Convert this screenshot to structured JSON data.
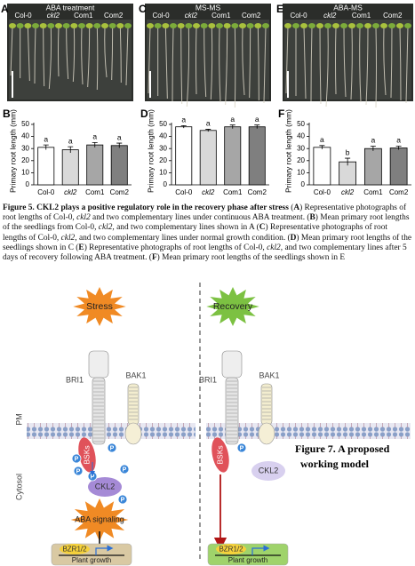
{
  "figure5": {
    "photos": [
      {
        "letter": "A",
        "title": "ABA treatment",
        "columns": [
          "Col-0",
          "ckl2",
          "Com1",
          "Com2"
        ]
      },
      {
        "letter": "C",
        "title": "MS-MS",
        "columns": [
          "Col-0",
          "ckl2",
          "Com1",
          "Com2"
        ]
      },
      {
        "letter": "E",
        "title": "ABA-MS",
        "columns": [
          "Col-0",
          "ckl2",
          "Com1",
          "Com2"
        ]
      }
    ],
    "column_italic": [
      false,
      true,
      false,
      false
    ],
    "caption": [
      {
        "text": "Figure 5. CKL2 plays a positive regulatory role in the recovery phase after stress",
        "bold": true
      },
      {
        "text": " ("
      },
      {
        "text": "A",
        "bold": true
      },
      {
        "text": ") Representative photographs of root lengths of Col-0, "
      },
      {
        "text": "ckl2",
        "italic": true
      },
      {
        "text": " and two complementary lines under continuous ABA treatment. ("
      },
      {
        "text": "B",
        "bold": true
      },
      {
        "text": ") Mean primary root lengths of the seedlings from Col-0, "
      },
      {
        "text": "ckl2",
        "italic": true
      },
      {
        "text": ", and two complementary lines shown in A ("
      },
      {
        "text": "C",
        "bold": true
      },
      {
        "text": ") Representative photographs of root lengths of Col-0, "
      },
      {
        "text": "ckl2",
        "italic": true
      },
      {
        "text": ", and two complementary lines under normal growth condition. ("
      },
      {
        "text": "D",
        "bold": true
      },
      {
        "text": ") Mean primary root lengths of the seedlings shown in C ("
      },
      {
        "text": "E",
        "bold": true
      },
      {
        "text": ") Representative photographs of root lengths of Col-0, "
      },
      {
        "text": "ckl2",
        "italic": true
      },
      {
        "text": ", and two complementary lines after 5 days of recovery following ABA treatment. ("
      },
      {
        "text": "F",
        "bold": true
      },
      {
        "text": ") Mean primary root lengths of the seedlings shown in E"
      }
    ]
  },
  "chart_data": [
    {
      "type": "bar",
      "letter": "B",
      "y_label": "Primary root length (mm)",
      "categories": [
        "Col-0",
        "ckl2",
        "Com1",
        "Com2"
      ],
      "category_italic": [
        false,
        true,
        false,
        false
      ],
      "values": [
        31,
        29,
        33,
        32.5
      ],
      "errors": [
        2,
        2.5,
        2,
        2
      ],
      "letters": [
        "a",
        "a",
        "a",
        "a"
      ],
      "colors": [
        "#ffffff",
        "#d9d9d9",
        "#a6a6a6",
        "#7f7f7f"
      ],
      "ylim": [
        0,
        50
      ],
      "yticks": [
        0,
        10,
        20,
        30,
        40,
        50
      ]
    },
    {
      "type": "bar",
      "letter": "D",
      "y_label": "Primary root length (mm)",
      "categories": [
        "Col-0",
        "ckl2",
        "Com1",
        "Com2"
      ],
      "category_italic": [
        false,
        true,
        false,
        false
      ],
      "values": [
        48,
        45,
        48,
        48
      ],
      "errors": [
        1,
        1,
        1.5,
        1.5
      ],
      "letters": [
        "a",
        "a",
        "a",
        "a"
      ],
      "colors": [
        "#ffffff",
        "#d9d9d9",
        "#a6a6a6",
        "#7f7f7f"
      ],
      "ylim": [
        0,
        50
      ],
      "yticks": [
        0,
        10,
        20,
        30,
        40,
        50
      ]
    },
    {
      "type": "bar",
      "letter": "F",
      "y_label": "Primary root length (mm)",
      "categories": [
        "Col-0",
        "ckl2",
        "Com1",
        "Com2"
      ],
      "category_italic": [
        false,
        true,
        false,
        false
      ],
      "values": [
        31,
        19,
        30,
        30.5
      ],
      "errors": [
        1.5,
        3,
        2,
        1.5
      ],
      "letters": [
        "a",
        "b",
        "a",
        "a"
      ],
      "colors": [
        "#ffffff",
        "#d9d9d9",
        "#a6a6a6",
        "#7f7f7f"
      ],
      "ylim": [
        0,
        50
      ],
      "yticks": [
        0,
        10,
        20,
        30,
        40,
        50
      ]
    }
  ],
  "figure7": {
    "pm": "PM",
    "cytosol": "Cytosol",
    "phospho": "P",
    "left": {
      "trigger": "Stress",
      "bri1": "BRI1",
      "bak1": "BAK1",
      "bsks": "BSKs",
      "ckl2": "CKL2",
      "signal": "ABA signaling",
      "bzr": "BZR1/2",
      "growth": "Plant growth"
    },
    "right": {
      "trigger": "Recovery",
      "bri1": "BRI1",
      "bak1": "BAK1",
      "bsks": "BSKs",
      "ckl2": "CKL2",
      "bzr": "BZR1/2",
      "growth": "Plant growth"
    },
    "title_lines": [
      "Figure 7. A proposed",
      "working model"
    ]
  }
}
